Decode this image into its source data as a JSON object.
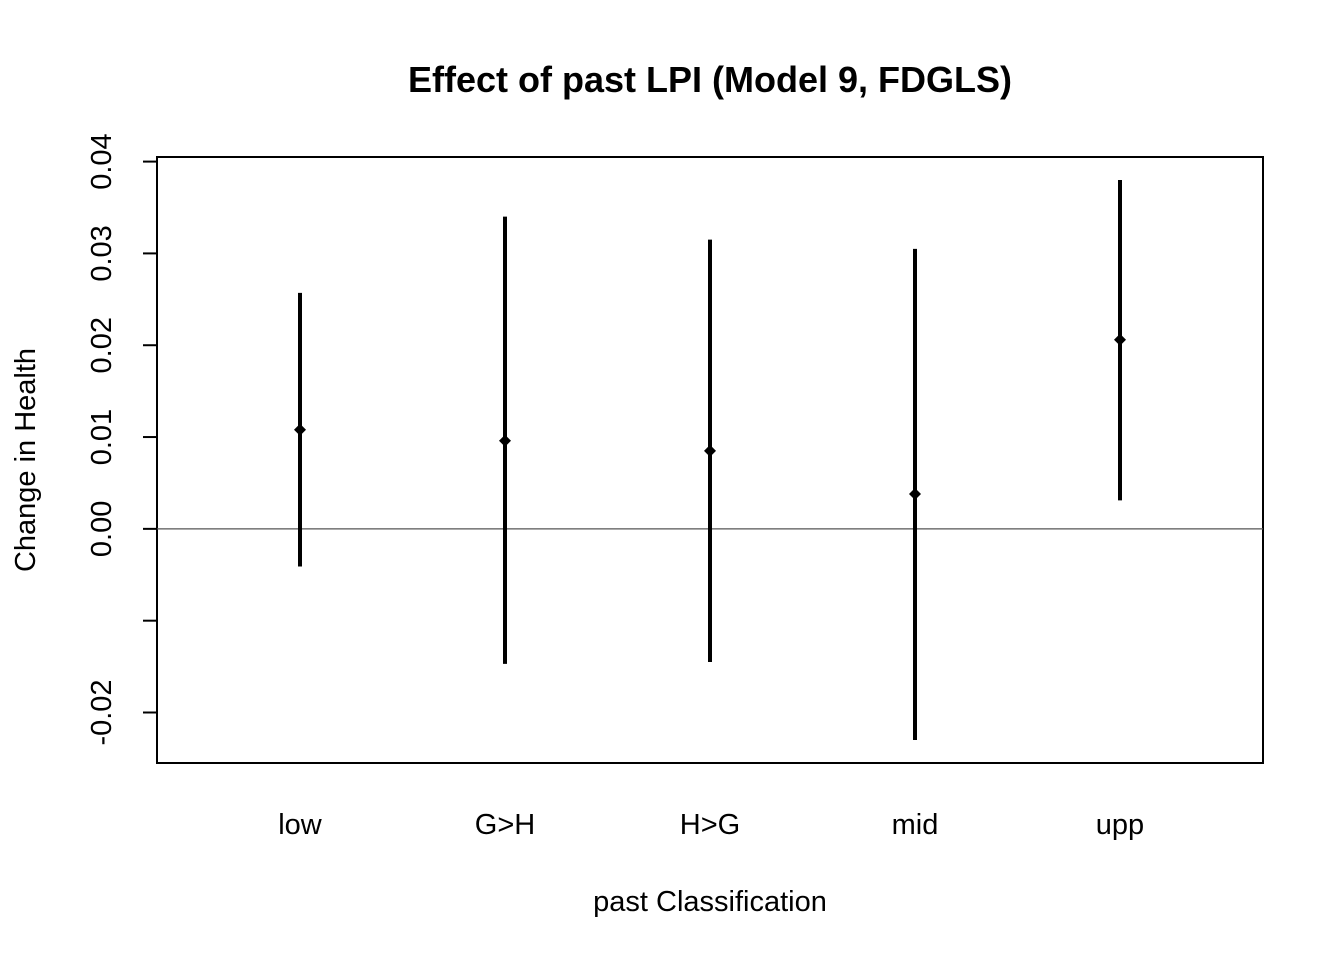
{
  "chart_data": {
    "type": "errorbar",
    "title": "Effect of past LPI (Model 9, FDGLS)",
    "xlabel": "past Classification",
    "ylabel": "Change in Health",
    "categories": [
      "low",
      "G>H",
      "H>G",
      "mid",
      "upp"
    ],
    "estimates": [
      0.0108,
      0.0096,
      0.0085,
      0.0038,
      0.0206
    ],
    "lower": [
      -0.0041,
      -0.0147,
      -0.0145,
      -0.023,
      0.0031
    ],
    "upper": [
      0.0257,
      0.034,
      0.0315,
      0.0305,
      0.038
    ],
    "y_ticks": [
      -0.02,
      -0.01,
      0.0,
      0.01,
      0.02,
      0.03,
      0.04
    ],
    "y_tick_labels": [
      "-0.02",
      "",
      "0.00",
      "0.01",
      "0.02",
      "0.03",
      "0.04"
    ],
    "ylim": [
      -0.0255,
      0.0405
    ],
    "reference_line": 0,
    "grid": false,
    "legend": "none"
  }
}
